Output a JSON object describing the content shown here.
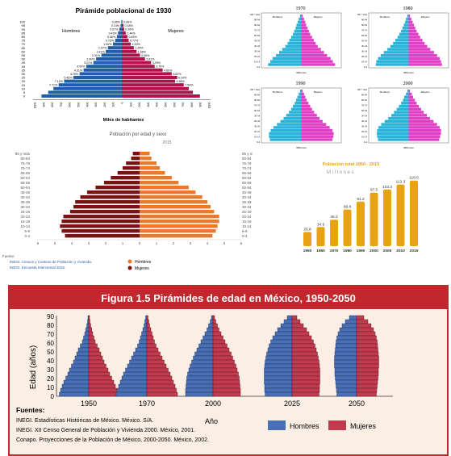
{
  "colors": {
    "male_1930": "#1f5ea8",
    "female_1930": "#b0124c",
    "male_4": "#2ab3d8",
    "female_4": "#e040c6",
    "dark_red": "#7b1212",
    "orange": "#e87a2b",
    "gold": "#e8a315",
    "fig_blue": "#4a6fb5",
    "fig_red": "#c23a4e",
    "fig_title_bg": "#c1272d"
  },
  "chart_data": [
    {
      "type": "bar",
      "id": "piramide_1930",
      "title": "Pirámide poblacional de 1930",
      "xlabel": "Miles de habitantes",
      "legend": [
        "Hombres",
        "Mujeres"
      ],
      "categories": [
        "100",
        "95",
        "90",
        "85",
        "80",
        "75",
        "70",
        "65",
        "60",
        "55",
        "50",
        "45",
        "40",
        "35",
        "30",
        "25",
        "20",
        "15",
        "10",
        "5",
        "0"
      ],
      "series": [
        {
          "name": "Hombres",
          "values": [
            0.06,
            0.14,
            0.27,
            0.43,
            0.56,
            0.75,
            1.0,
            1.57,
            1.81,
            2.31,
            2.9,
            3.21,
            4.0,
            4.31,
            4.76,
            5.45,
            6.5,
            7.12,
            7.71,
            8.3,
            9.05
          ]
        },
        {
          "name": "Mujeres",
          "values": [
            0.06,
            0.18,
            0.26,
            0.44,
            0.63,
            0.77,
            1.0,
            1.35,
            1.66,
            2.05,
            2.61,
            3.29,
            3.7,
            4.6,
            5.62,
            6.24,
            6.0,
            6.98,
            7.54,
            8.0,
            8.8
          ]
        }
      ],
      "labels_left": [
        "0.06%",
        "0.14%",
        "0.27%",
        "0.43%",
        "0.56%",
        "0.75%",
        "1.00%",
        "1.57%",
        "1.81%",
        "2.31%",
        "2.90%",
        "3.21%",
        "4.00%",
        "4.31%",
        "4.76%",
        "5.45%",
        "7.12%",
        "7.71%"
      ],
      "labels_right": [
        "0.06%",
        "0.18%",
        "0.26%",
        "0.44%",
        "0.63%",
        "0.77%",
        "1.00%",
        "1.35%",
        "1.66%",
        "2.05%",
        "2.61%",
        "3.29%",
        "3.70%",
        "4.60%",
        "5.62%",
        "6.24%",
        "6.98%",
        "7.54%"
      ],
      "ticks": [
        "1000",
        "900",
        "800",
        "700",
        "600",
        "500",
        "400",
        "300",
        "200",
        "100",
        "0",
        "100",
        "200",
        "300",
        "400",
        "500",
        "600",
        "700",
        "800",
        "900",
        "1000"
      ]
    },
    {
      "type": "bar",
      "id": "piramides_4",
      "panels": [
        {
          "title": "1970",
          "xlabel": "Millones",
          "legend": [
            "Hombres",
            "Mujeres"
          ],
          "values_m": [
            0.3,
            0.6,
            0.8,
            1.1,
            1.3,
            1.6,
            1.9,
            2.3,
            2.7,
            3.1,
            3.6,
            4.3,
            5.0,
            5.7,
            6.5,
            7.0,
            7.5
          ],
          "values_f": [
            0.3,
            0.6,
            0.9,
            1.1,
            1.4,
            1.7,
            2.0,
            2.4,
            2.8,
            3.2,
            3.7,
            4.4,
            5.1,
            5.8,
            6.6,
            7.1,
            7.6
          ]
        },
        {
          "title": "1980",
          "xlabel": "Millones",
          "legend": [
            "Hombres",
            "Mujeres"
          ],
          "values_m": [
            0.3,
            0.6,
            0.8,
            1.1,
            1.4,
            1.7,
            2.1,
            2.5,
            3.0,
            3.5,
            4.1,
            4.8,
            5.6,
            6.3,
            6.9,
            7.3,
            7.4
          ],
          "values_f": [
            0.3,
            0.6,
            0.9,
            1.2,
            1.5,
            1.8,
            2.2,
            2.6,
            3.1,
            3.6,
            4.2,
            4.9,
            5.7,
            6.4,
            7.0,
            7.3,
            7.5
          ]
        },
        {
          "title": "1990",
          "xlabel": "Millones",
          "legend": [
            "Hombres",
            "Mujeres"
          ],
          "values_m": [
            0.3,
            0.6,
            0.9,
            1.2,
            1.5,
            1.9,
            2.3,
            2.8,
            3.4,
            4.0,
            4.7,
            5.5,
            6.3,
            6.9,
            7.3,
            7.3,
            7.1
          ],
          "values_f": [
            0.3,
            0.6,
            0.9,
            1.2,
            1.6,
            2.0,
            2.4,
            2.9,
            3.5,
            4.1,
            4.8,
            5.6,
            6.4,
            7.0,
            7.3,
            7.2,
            7.0
          ]
        },
        {
          "title": "2000",
          "xlabel": "Millones",
          "legend": [
            "Hombres",
            "Mujeres"
          ],
          "values_m": [
            0.3,
            0.6,
            1.0,
            1.3,
            1.7,
            2.2,
            2.7,
            3.3,
            3.9,
            4.6,
            5.4,
            6.2,
            6.8,
            7.1,
            7.2,
            7.1,
            6.9
          ],
          "values_f": [
            0.3,
            0.7,
            1.0,
            1.4,
            1.8,
            2.3,
            2.8,
            3.4,
            4.1,
            4.8,
            5.6,
            6.4,
            7.0,
            7.3,
            7.3,
            7.1,
            6.9
          ]
        }
      ],
      "age_labels": [
        "100 + más",
        "90-94",
        "80-84",
        "70-74",
        "60-64",
        "50-54",
        "40-44",
        "30-34",
        "20-24",
        "10-14",
        "0-4"
      ]
    },
    {
      "type": "bar",
      "id": "poblacion_edad_sexo",
      "title": "Población por edad y sexo",
      "subtitle": "2015",
      "categories": [
        "85 y más",
        "80-84",
        "75-79",
        "70-74",
        "65-69",
        "60-64",
        "55-59",
        "50-54",
        "45-49",
        "40-44",
        "35-39",
        "30-34",
        "25-29",
        "20-24",
        "15-19",
        "10-14",
        "5-9",
        "0-4"
      ],
      "series": [
        {
          "name": "Hombres",
          "values": [
            0.4,
            0.5,
            0.8,
            1.0,
            1.3,
            1.7,
            2.1,
            2.6,
            3.1,
            3.5,
            3.8,
            3.9,
            4.1,
            4.5,
            4.6,
            4.7,
            4.6,
            4.4
          ]
        },
        {
          "name": "Mujeres",
          "values": [
            0.6,
            0.7,
            1.0,
            1.2,
            1.5,
            1.9,
            2.3,
            2.9,
            3.3,
            3.7,
            4.0,
            4.2,
            4.4,
            4.7,
            4.7,
            4.6,
            4.5,
            4.3
          ]
        }
      ],
      "ticks": [
        "6",
        "5",
        "4",
        "3",
        "2",
        "1",
        "0",
        "1",
        "2",
        "3",
        "4",
        "5",
        "6"
      ],
      "legend": [
        "Hombres",
        "Mujeres"
      ],
      "source_label": "Fuente:",
      "source_lines": [
        "INEGI. Censos y Conteos de Población y Vivienda.",
        "INEGI. Encuesta Intercensal 2015."
      ]
    },
    {
      "type": "bar",
      "id": "poblacion_total",
      "title": "Población total 1950 - 2015",
      "subtitle": "M i l l o n e s",
      "categories": [
        "1950",
        "1960",
        "1970",
        "1980",
        "1990",
        "2000",
        "2005",
        "2010",
        "2015"
      ],
      "values": [
        25.8,
        34.9,
        48.2,
        66.8,
        81.2,
        97.5,
        103.3,
        112.3,
        119.5
      ],
      "value_labels": [
        "25.8",
        "34.9",
        "48.2",
        "66.8",
        "81.2",
        "97.5",
        "103.3",
        "112.3",
        "119.5"
      ]
    },
    {
      "type": "bar",
      "id": "figura_1_5",
      "title": "Figura 1.5 Pirámides de edad en México, 1950-2050",
      "ylabel": "Edad (años)",
      "xlabel": "Año",
      "yticks": [
        "0",
        "10",
        "20",
        "30",
        "40",
        "50",
        "60",
        "70",
        "80",
        "90"
      ],
      "years": [
        "1950",
        "1970",
        "2000",
        "2025",
        "2050"
      ],
      "legend": [
        "Hombres",
        "Mujeres"
      ],
      "sources_title": "Fuentes:",
      "sources": [
        "INEGI. Estadísticas Históricas de México. México. S/A.",
        "INEGI. XII Censo General de Población y Vivienda 2000. México, 2001.",
        "Conapo. Proyecciones de la Población de México, 2000-2050. México, 2002."
      ]
    }
  ]
}
